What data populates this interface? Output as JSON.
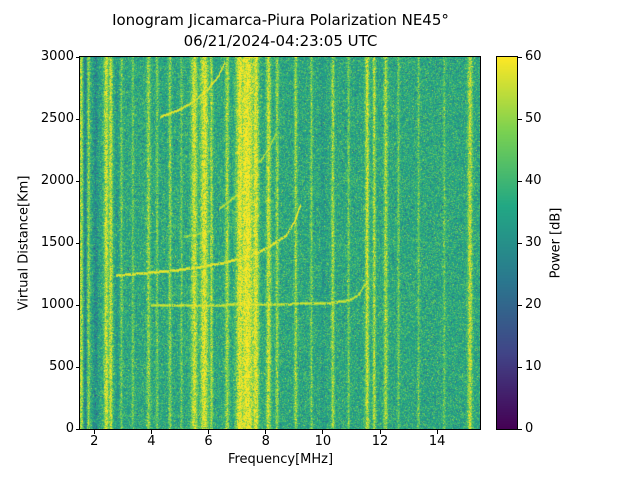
{
  "chart_data": {
    "type": "heatmap",
    "title": "Ionogram Jicamarca-Piura Polarization NE45°",
    "subtitle": "06/21/2024-04:23:05 UTC",
    "xlabel": "Frequency[MHz]",
    "ylabel": "Virtual Distance[Km]",
    "colorbar_label": "Power [dB]",
    "xlim": [
      1.5,
      15.5
    ],
    "ylim": [
      0,
      3000
    ],
    "clim": [
      0,
      60
    ],
    "xticks": [
      2,
      4,
      6,
      8,
      10,
      12,
      14
    ],
    "yticks": [
      0,
      500,
      1000,
      1500,
      2000,
      2500,
      3000
    ],
    "colorbar_ticks": [
      0,
      10,
      20,
      30,
      40,
      50,
      60
    ],
    "colormap": "viridis",
    "viridis_stops": [
      "#440154",
      "#414487",
      "#2a788e",
      "#22a884",
      "#7ad151",
      "#fde725"
    ],
    "noise": {
      "mean_db": 36,
      "std_db": 5
    },
    "rfi_stripes_mhz": [
      {
        "f": 1.55,
        "w": 0.05,
        "p": 53
      },
      {
        "f": 1.8,
        "w": 0.04,
        "p": 50
      },
      {
        "f": 2.42,
        "w": 0.06,
        "p": 56
      },
      {
        "f": 2.58,
        "w": 0.05,
        "p": 55
      },
      {
        "f": 2.95,
        "w": 0.03,
        "p": 47
      },
      {
        "f": 3.35,
        "w": 0.03,
        "p": 46
      },
      {
        "f": 3.9,
        "w": 0.05,
        "p": 50
      },
      {
        "f": 4.2,
        "w": 0.03,
        "p": 47
      },
      {
        "f": 4.65,
        "w": 0.04,
        "p": 49
      },
      {
        "f": 5.05,
        "w": 0.03,
        "p": 46
      },
      {
        "f": 5.5,
        "w": 0.08,
        "p": 56
      },
      {
        "f": 5.85,
        "w": 0.1,
        "p": 58
      },
      {
        "f": 6.1,
        "w": 0.04,
        "p": 52
      },
      {
        "f": 6.65,
        "w": 0.05,
        "p": 52
      },
      {
        "f": 7.1,
        "w": 0.1,
        "p": 59
      },
      {
        "f": 7.35,
        "w": 0.18,
        "p": 60
      },
      {
        "f": 7.65,
        "w": 0.08,
        "p": 58
      },
      {
        "f": 8.1,
        "w": 0.06,
        "p": 55
      },
      {
        "f": 8.4,
        "w": 0.04,
        "p": 50
      },
      {
        "f": 9.05,
        "w": 0.04,
        "p": 51
      },
      {
        "f": 9.6,
        "w": 0.03,
        "p": 48
      },
      {
        "f": 10.35,
        "w": 0.04,
        "p": 52
      },
      {
        "f": 10.9,
        "w": 0.03,
        "p": 47
      },
      {
        "f": 11.55,
        "w": 0.05,
        "p": 55
      },
      {
        "f": 11.8,
        "w": 0.04,
        "p": 53
      },
      {
        "f": 12.2,
        "w": 0.05,
        "p": 52
      },
      {
        "f": 12.65,
        "w": 0.03,
        "p": 47
      },
      {
        "f": 13.35,
        "w": 0.03,
        "p": 46
      },
      {
        "f": 14.25,
        "w": 0.03,
        "p": 45
      },
      {
        "f": 15.15,
        "w": 0.06,
        "p": 54
      }
    ],
    "dark_columns_mhz": [
      {
        "f": 1.68,
        "w": 0.05,
        "d": -9
      },
      {
        "f": 2.05,
        "w": 0.06,
        "d": -7
      },
      {
        "f": 2.8,
        "w": 0.04,
        "d": -4
      },
      {
        "f": 10.0,
        "w": 0.05,
        "d": -3
      }
    ],
    "echo_traces_km": [
      {
        "p": 57,
        "points": [
          [
            2.75,
            1240
          ],
          [
            3.5,
            1255
          ],
          [
            4.5,
            1275
          ],
          [
            5.5,
            1302
          ],
          [
            6.5,
            1342
          ],
          [
            7.4,
            1398
          ],
          [
            8.1,
            1470
          ],
          [
            8.7,
            1565
          ],
          [
            9.0,
            1675
          ],
          [
            9.2,
            1810
          ]
        ]
      },
      {
        "p": 54,
        "points": [
          [
            4.0,
            1000
          ],
          [
            6.0,
            1002
          ],
          [
            8.0,
            1008
          ],
          [
            10.2,
            1018
          ],
          [
            10.9,
            1040
          ],
          [
            11.25,
            1090
          ],
          [
            11.5,
            1180
          ]
        ]
      },
      {
        "p": 56,
        "points": [
          [
            4.3,
            2520
          ],
          [
            4.9,
            2570
          ],
          [
            5.5,
            2650
          ],
          [
            6.0,
            2750
          ],
          [
            6.35,
            2855
          ],
          [
            6.55,
            2960
          ]
        ]
      },
      {
        "p": 53,
        "points": [
          [
            6.35,
            1775
          ],
          [
            6.75,
            1845
          ],
          [
            7.1,
            1915
          ],
          [
            7.35,
            1990
          ]
        ]
      },
      {
        "p": 52,
        "points": [
          [
            7.5,
            2090
          ],
          [
            7.85,
            2180
          ],
          [
            8.15,
            2290
          ],
          [
            8.35,
            2385
          ]
        ]
      },
      {
        "p": 51,
        "points": [
          [
            5.15,
            1555
          ],
          [
            5.65,
            1578
          ],
          [
            6.05,
            1602
          ]
        ]
      }
    ]
  }
}
